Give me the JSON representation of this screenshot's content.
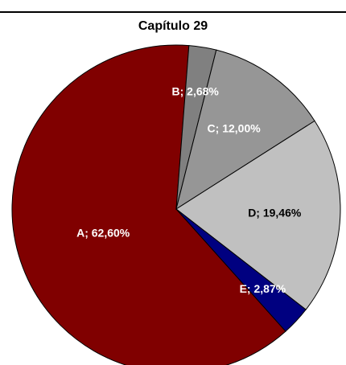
{
  "chart_data": {
    "type": "pie",
    "title": "Capítulo 29",
    "categories": [
      "A",
      "B",
      "C",
      "D",
      "E"
    ],
    "values": [
      62.6,
      2.68,
      12.0,
      19.46,
      2.87
    ],
    "value_labels": [
      "A; 62,60%",
      "B; 2,68%",
      "C; 12,00%",
      "D; 19,46%",
      "E; 2,87%"
    ],
    "colors": [
      "#800000",
      "#808080",
      "#969696",
      "#c0c0c0",
      "#000080"
    ]
  }
}
